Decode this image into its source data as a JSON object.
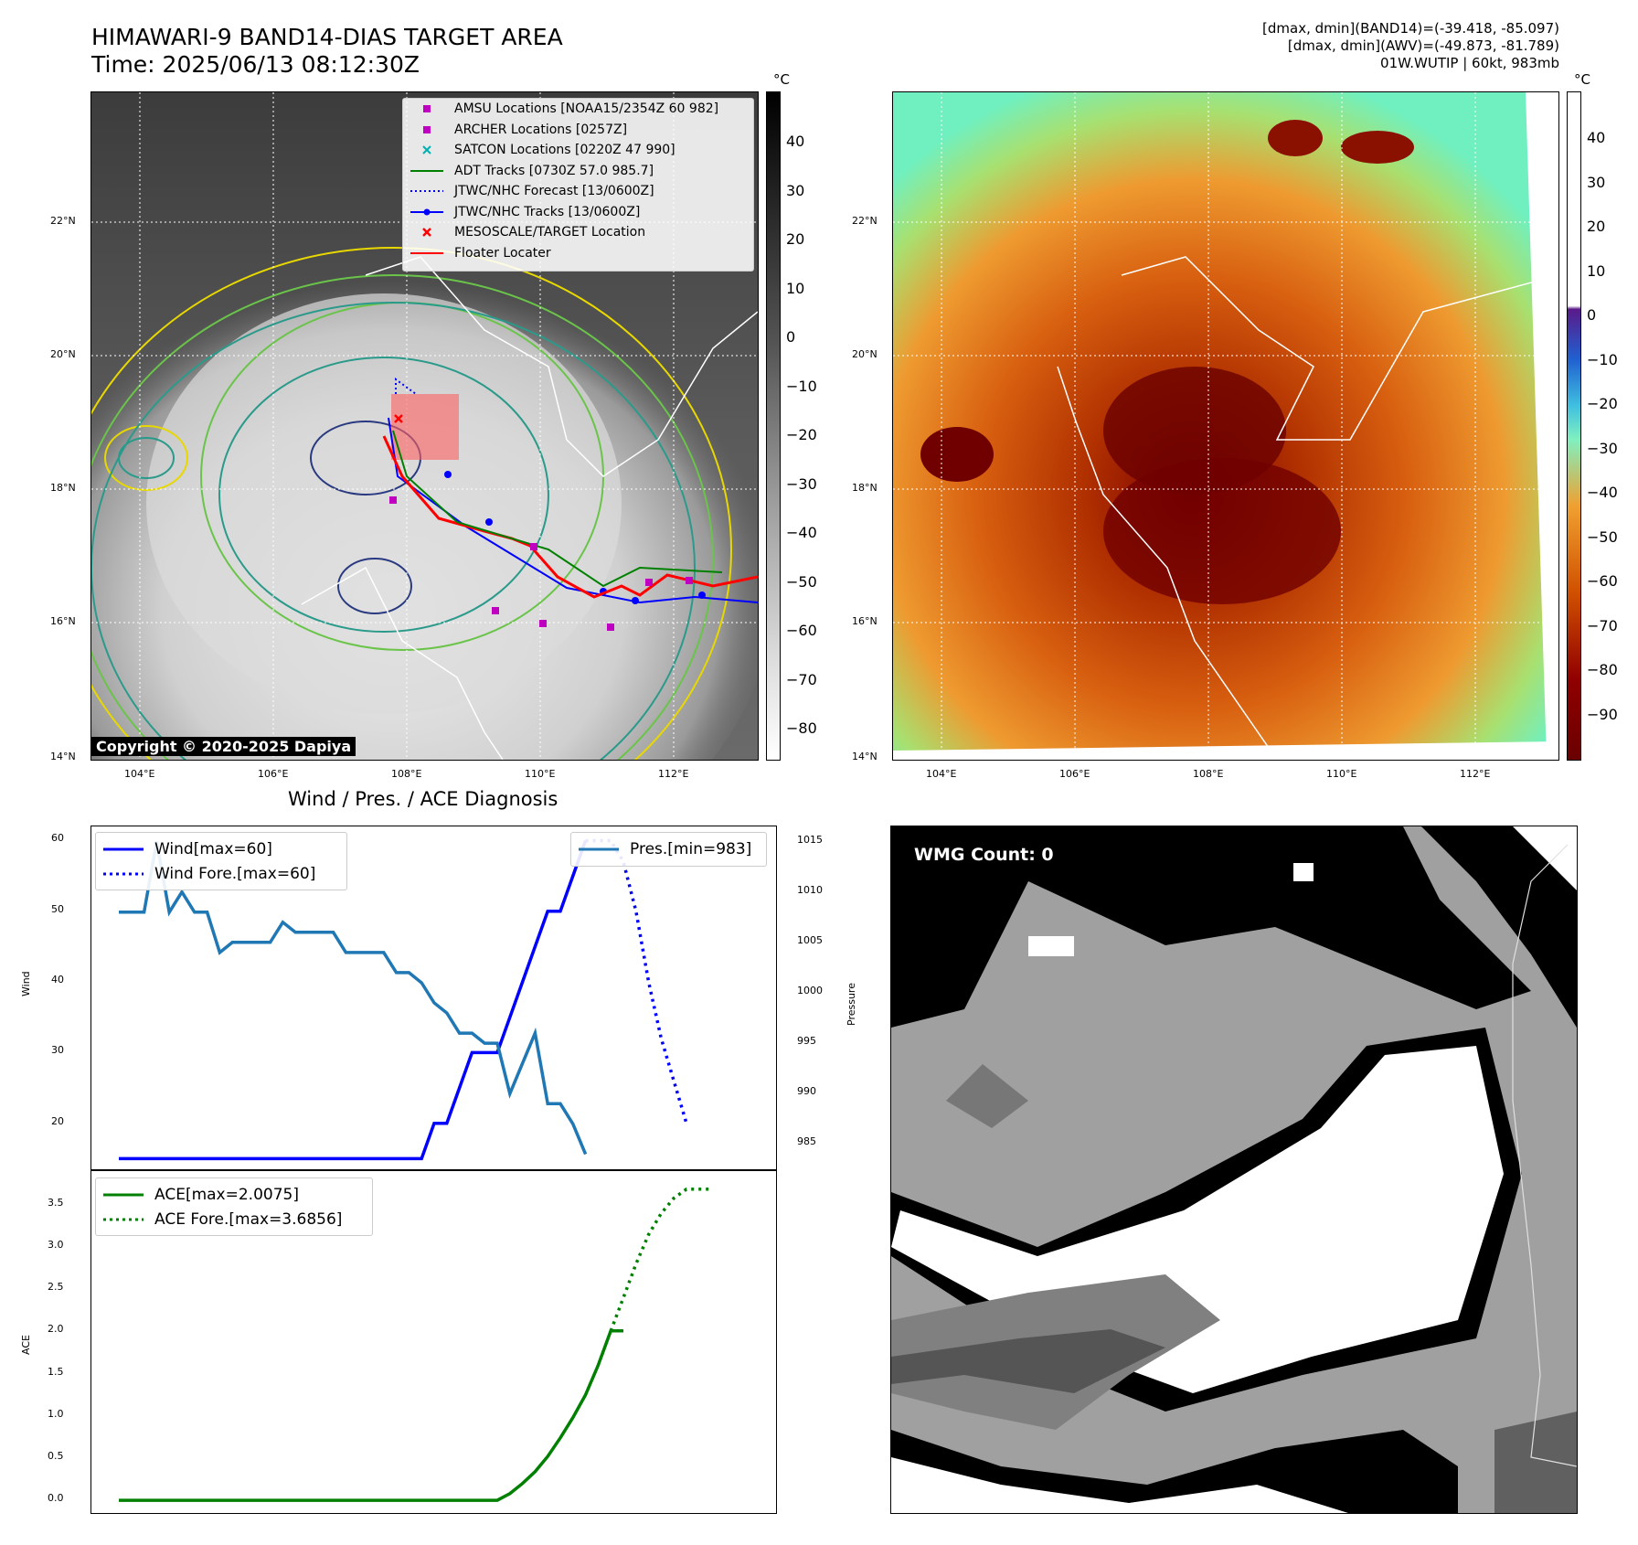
{
  "header": {
    "title_line1": "HIMAWARI-9 BAND14-DIAS TARGET AREA",
    "title_line2": "Time: 2025/06/13 08:12:30Z",
    "info_line1": "[dmax, dmin](BAND14)=(-39.418, -85.097)",
    "info_line2": "[dmax, dmin](AWV)=(-49.873, -81.789)",
    "info_line3": "01W.WUTIP | 60kt, 983mb"
  },
  "map_axes": {
    "lon_ticks": [
      "104°E",
      "106°E",
      "108°E",
      "110°E",
      "112°E"
    ],
    "lat_ticks": [
      "22°N",
      "20°N",
      "18°N",
      "16°N",
      "14°N"
    ],
    "lon_range": [
      103.3,
      113.3
    ],
    "lat_range": [
      14.0,
      24.0
    ]
  },
  "colorbar_left": {
    "unit": "°C",
    "ticks": [
      "40",
      "30",
      "20",
      "10",
      "0",
      "−10",
      "−20",
      "−30",
      "−40",
      "−50",
      "−60",
      "−70",
      "−80"
    ]
  },
  "colorbar_right": {
    "unit": "°C",
    "ticks": [
      "40",
      "30",
      "20",
      "10",
      "0",
      "−10",
      "−20",
      "−30",
      "−40",
      "−50",
      "−60",
      "−70",
      "−80",
      "−90"
    ]
  },
  "map_legend": [
    {
      "label": "AMSU Locations [NOAA15/2354Z 60 982]",
      "color": "#c000c0",
      "marker": "square"
    },
    {
      "label": "ARCHER Locations [0257Z]",
      "color": "#c000c0",
      "marker": "square"
    },
    {
      "label": "SATCON Locations [0220Z 47 990]",
      "color": "#00b0b0",
      "marker": "x"
    },
    {
      "label": "ADT Tracks [0730Z 57.0 985.7]",
      "color": "#008000",
      "marker": "line"
    },
    {
      "label": "JTWC/NHC Forecast [13/0600Z]",
      "color": "#0000ff",
      "marker": "dotted"
    },
    {
      "label": "JTWC/NHC Tracks [13/0600Z]",
      "color": "#0000ff",
      "marker": "line-dot"
    },
    {
      "label": "MESOSCALE/TARGET Location",
      "color": "#ff0000",
      "marker": "x"
    },
    {
      "label": "Floater Locater",
      "color": "#ff0000",
      "marker": "line"
    }
  ],
  "copyright": "Copyright © 2020-2025 Dapiya",
  "wmg_label": "WMG Count: 0",
  "chart_data": [
    {
      "type": "line",
      "title": "Wind / Pres. / ACE Diagnosis",
      "ylabel": "Wind",
      "ylabel_right": "Pressure",
      "ylim": [
        13.5,
        62
      ],
      "ylim_right": [
        982.5,
        1016.5
      ],
      "y_ticks": [
        20,
        30,
        40,
        50,
        60
      ],
      "y_ticks_right": [
        985,
        990,
        995,
        1000,
        1005,
        1010,
        1015
      ],
      "series": [
        {
          "name": "Wind[max=60]",
          "axis": "left",
          "color": "#0000ff",
          "style": "solid",
          "x": [
            0,
            1,
            2,
            3,
            4,
            5,
            6,
            7,
            8,
            9,
            10,
            11,
            12,
            13,
            14,
            15,
            16,
            17,
            18,
            19,
            20,
            21,
            22,
            23,
            24,
            25,
            26,
            27,
            28,
            29,
            30,
            31,
            32,
            33,
            34,
            35,
            36,
            37
          ],
          "values": [
            15,
            15,
            15,
            15,
            15,
            15,
            15,
            15,
            15,
            15,
            15,
            15,
            15,
            15,
            15,
            15,
            15,
            15,
            15,
            15,
            15,
            15,
            15,
            15,
            15,
            20,
            20,
            25,
            30,
            30,
            30,
            35,
            40,
            45,
            50,
            50,
            55,
            60
          ]
        },
        {
          "name": "Wind Fore.[max=60]",
          "axis": "left",
          "color": "#0000ff",
          "style": "dotted",
          "x": [
            37,
            38,
            39,
            40,
            41,
            42,
            43,
            44,
            45
          ],
          "values": [
            60,
            60,
            60,
            57,
            50,
            40,
            32,
            26,
            20
          ]
        },
        {
          "name": "Pres.[min=983]",
          "axis": "right",
          "color": "#1f77b4",
          "style": "solid",
          "x": [
            0,
            1,
            2,
            3,
            4,
            5,
            6,
            7,
            8,
            9,
            10,
            11,
            12,
            13,
            14,
            15,
            16,
            17,
            18,
            19,
            20,
            21,
            22,
            23,
            24,
            25,
            26,
            27,
            28,
            29,
            30,
            31,
            32,
            33,
            34,
            35,
            36,
            37
          ],
          "values": [
            1008,
            1008,
            1008,
            1015,
            1008,
            1010,
            1008,
            1008,
            1004,
            1005,
            1005,
            1005,
            1005,
            1007,
            1006,
            1006,
            1006,
            1006,
            1004,
            1004,
            1004,
            1004,
            1002,
            1002,
            1001,
            999,
            998,
            996,
            996,
            995,
            995,
            990,
            993,
            996,
            989,
            989,
            987,
            984
          ]
        }
      ]
    },
    {
      "type": "line",
      "ylabel": "ACE",
      "ylim": [
        -0.15,
        3.9
      ],
      "y_ticks": [
        0.0,
        0.5,
        1.0,
        1.5,
        2.0,
        2.5,
        3.0,
        3.5
      ],
      "series": [
        {
          "name": "ACE[max=2.0075]",
          "color": "#008000",
          "style": "solid",
          "x": [
            0,
            10,
            20,
            25,
            30,
            31,
            32,
            33,
            34,
            35,
            36,
            37,
            38,
            39,
            40
          ],
          "values": [
            0,
            0,
            0,
            0,
            0,
            0.08,
            0.2,
            0.34,
            0.52,
            0.74,
            0.98,
            1.25,
            1.6,
            2.0075,
            2.0075
          ]
        },
        {
          "name": "ACE Fore.[max=3.6856]",
          "color": "#008000",
          "style": "dotted",
          "x": [
            39,
            40,
            41,
            42,
            43,
            44,
            45,
            46,
            47
          ],
          "values": [
            2.0075,
            2.4,
            2.8,
            3.15,
            3.4,
            3.58,
            3.6856,
            3.6856,
            3.6856
          ]
        }
      ],
      "x_count": 47
    }
  ]
}
